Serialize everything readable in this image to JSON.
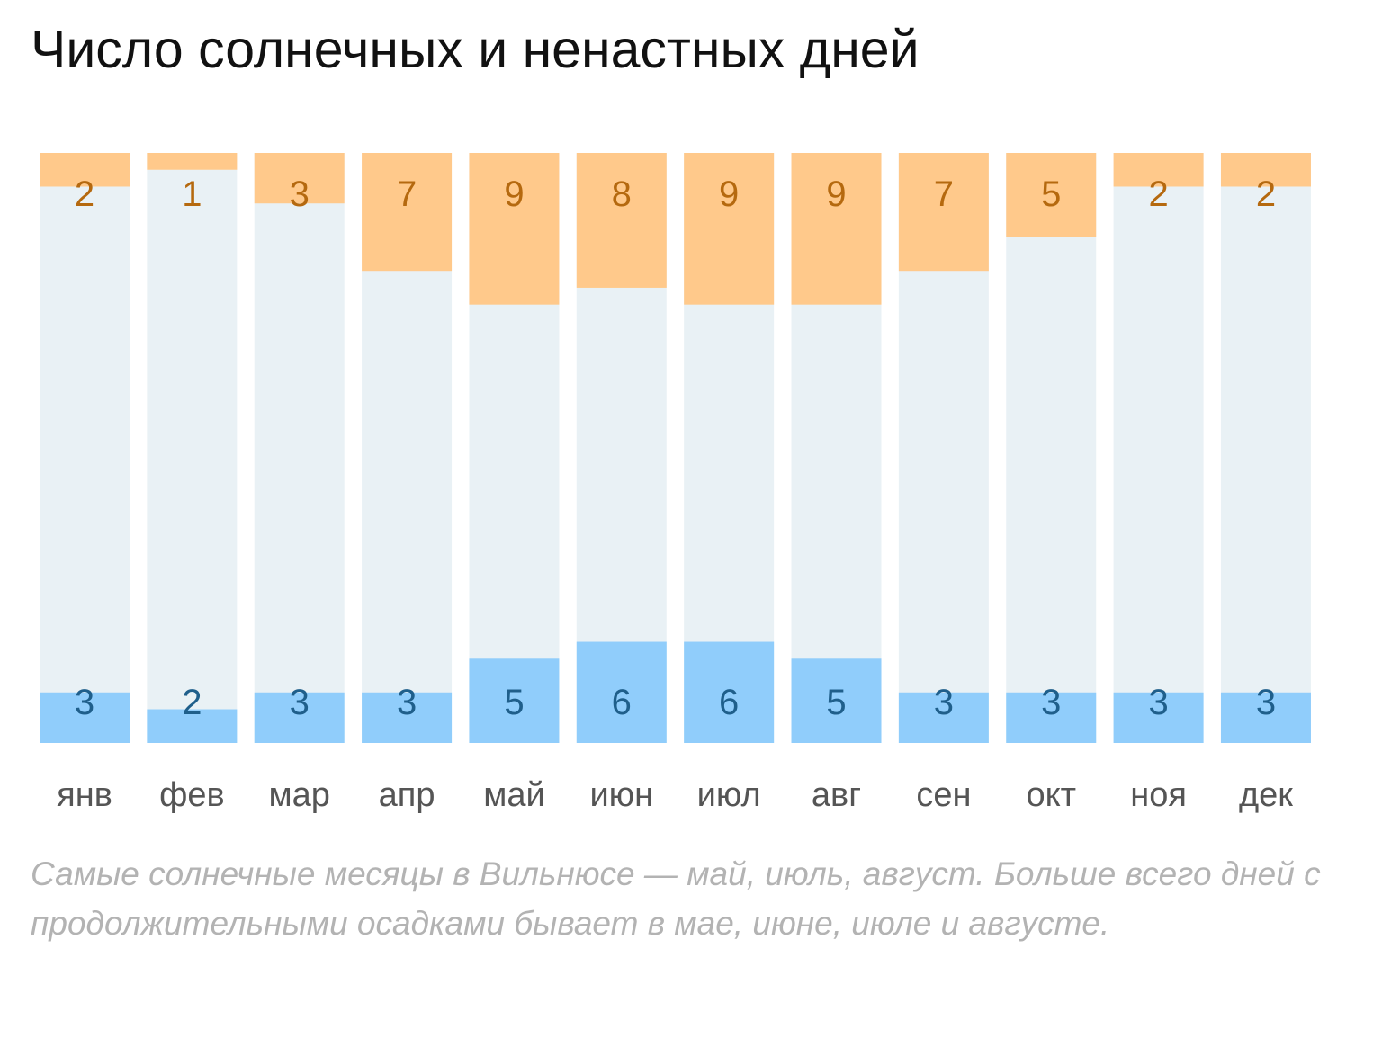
{
  "title": "Число солнечных и ненастных дней",
  "caption": "Самые солнечные месяцы в Вильнюсе — май, июль, август. Больше всего дней с продолжительными осадками бывает в мае, июне, июле и августе.",
  "colors": {
    "sunny": "#ffc98b",
    "sunny_text": "#b5690f",
    "rainy": "#90cdfb",
    "rainy_text": "#1f5f8b",
    "other": "#e9f1f5",
    "month_label": "#555555"
  },
  "chart_data": {
    "type": "bar",
    "stacked": true,
    "total_per_bar": 35,
    "categories": [
      "янв",
      "фев",
      "мар",
      "апр",
      "май",
      "июн",
      "июл",
      "авг",
      "сен",
      "окт",
      "ноя",
      "дек"
    ],
    "series": [
      {
        "values": [
          2,
          1,
          3,
          7,
          9,
          8,
          9,
          9,
          7,
          5,
          2,
          2
        ],
        "color": "#ffc98b",
        "position": "top"
      },
      {
        "values": [
          3,
          2,
          3,
          3,
          5,
          6,
          6,
          5,
          3,
          3,
          3,
          3
        ],
        "color": "#90cdfb",
        "position": "bottom"
      }
    ]
  }
}
